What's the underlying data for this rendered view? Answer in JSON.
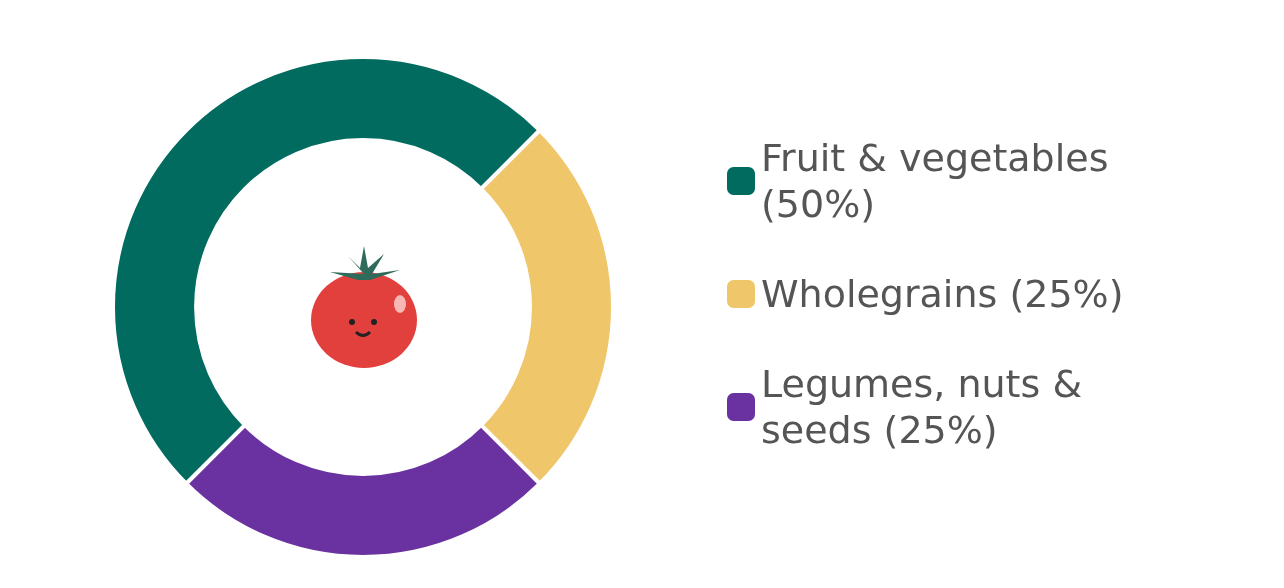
{
  "chart_data": {
    "type": "donut",
    "categories": [
      "Fruit & vegetables (50%)",
      "Wholegrains (25%)",
      "Legumes, nuts & seeds (25%)"
    ],
    "values": [
      50,
      25,
      25
    ],
    "colors": [
      "#006b5e",
      "#f0c66a",
      "#6a32a0"
    ],
    "legend": "right"
  }
}
